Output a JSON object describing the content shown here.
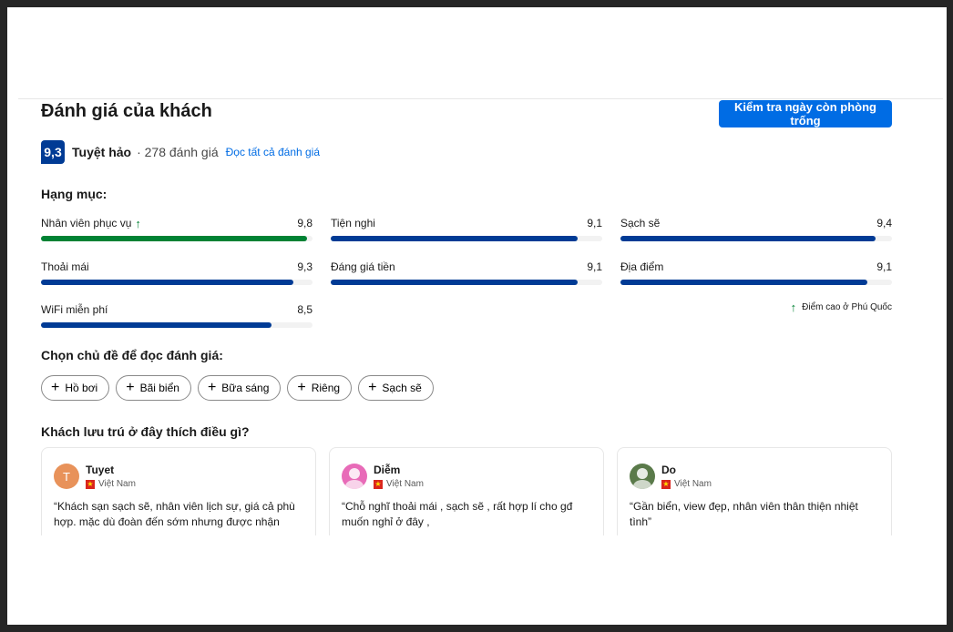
{
  "title": "Đánh giá của khách",
  "cta_label": "Kiểm tra ngày còn phòng trống",
  "score": {
    "value": "9,3",
    "label": "Tuyệt hảo",
    "separator": "·",
    "count": "278 đánh giá",
    "read_all": "Đọc tất cả đánh giá"
  },
  "categories_label": "Hạng mục:",
  "categories": [
    {
      "name": "Nhân viên phục vụ",
      "score": "9,8",
      "value": 9.8,
      "highlight": true,
      "color": "#008234"
    },
    {
      "name": "Tiện nghi",
      "score": "9,1",
      "value": 9.1,
      "color": "#003b95"
    },
    {
      "name": "Sạch sẽ",
      "score": "9,4",
      "value": 9.4,
      "color": "#003b95"
    },
    {
      "name": "Thoải mái",
      "score": "9,3",
      "value": 9.3,
      "color": "#003b95"
    },
    {
      "name": "Đáng giá tiền",
      "score": "9,1",
      "value": 9.1,
      "color": "#003b95"
    },
    {
      "name": "Địa điểm",
      "score": "9,1",
      "value": 9.1,
      "color": "#003b95"
    },
    {
      "name": "WiFi miễn phí",
      "score": "8,5",
      "value": 8.5,
      "color": "#003b95"
    }
  ],
  "high_score_note": "Điểm cao ở Phú Quốc",
  "topics_label": "Chọn chủ đề để đọc đánh giá:",
  "topics": [
    "Hồ bơi",
    "Bãi biển",
    "Bữa sáng",
    "Riêng",
    "Sạch sẽ"
  ],
  "liked_label": "Khách lưu trú ở đây thích điều gì?",
  "reviews": [
    {
      "name": "Tuyet",
      "initial": "T",
      "country": "Việt Nam",
      "avatar_color": "#e8925a",
      "quote": "“Khách sạn sạch sẽ, nhân viên lịch sự, giá cả phù hợp. mặc dù đoàn đến sớm nhưng được nhận"
    },
    {
      "name": "Diễm",
      "initial": "",
      "country": "Việt Nam",
      "avatar_color": "#e86bb8",
      "quote": "“Chỗ nghĩ thoải mái , sạch sẽ , rất hợp lí cho gđ muốn nghỉ ở đây ,"
    },
    {
      "name": "Do",
      "initial": "",
      "country": "Việt Nam",
      "avatar_color": "#5a7a4a",
      "quote": "“Gần biển, view đẹp, nhân viên thân thiện nhiệt tình”"
    }
  ]
}
